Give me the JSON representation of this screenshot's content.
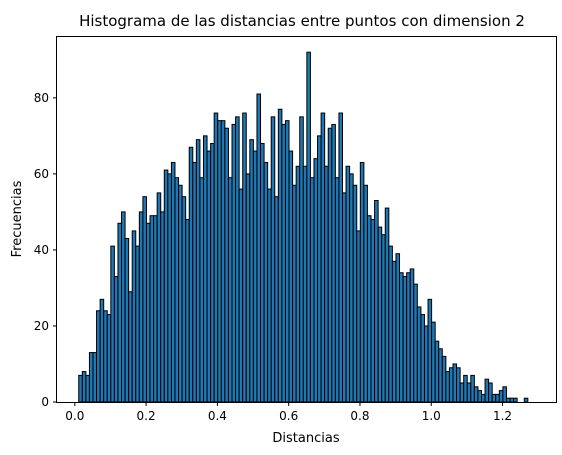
{
  "chart_data": {
    "type": "bar",
    "title": "Histograma de las distancias entre puntos con dimension 2",
    "xlabel": "Distancias",
    "ylabel": "Frecuencias",
    "xlim": [
      -0.05,
      1.35
    ],
    "ylim": [
      0,
      96
    ],
    "grid": false,
    "bar_color": "#1f77b4",
    "edge_color": "#000000",
    "x_ticks": [
      {
        "value": 0.0,
        "label": "0.0"
      },
      {
        "value": 0.2,
        "label": "0.2"
      },
      {
        "value": 0.4,
        "label": "0.4"
      },
      {
        "value": 0.6,
        "label": "0.6"
      },
      {
        "value": 0.8,
        "label": "0.8"
      },
      {
        "value": 1.0,
        "label": "1.0"
      },
      {
        "value": 1.2,
        "label": "1.2"
      }
    ],
    "y_ticks": [
      {
        "value": 0,
        "label": "0"
      },
      {
        "value": 20,
        "label": "20"
      },
      {
        "value": 40,
        "label": "40"
      },
      {
        "value": 60,
        "label": "60"
      },
      {
        "value": 80,
        "label": "80"
      }
    ],
    "bin_start": 0.011,
    "bin_width": 0.01,
    "values": [
      7,
      8,
      7,
      13,
      13,
      24,
      27,
      24,
      23,
      41,
      33,
      47,
      50,
      43,
      29,
      45,
      41,
      50,
      54,
      47,
      49,
      49,
      55,
      50,
      61,
      60,
      63,
      59,
      57,
      54,
      48,
      67,
      63,
      69,
      59,
      70,
      66,
      68,
      76,
      74,
      74,
      72,
      59,
      73,
      75,
      56,
      76,
      60,
      69,
      66,
      81,
      68,
      63,
      56,
      75,
      54,
      77,
      73,
      74,
      66,
      57,
      62,
      75,
      62,
      92,
      59,
      64,
      70,
      76,
      62,
      72,
      73,
      59,
      76,
      55,
      62,
      60,
      57,
      45,
      63,
      57,
      49,
      48,
      53,
      46,
      44,
      51,
      41,
      37,
      39,
      34,
      33,
      34,
      35,
      31,
      25,
      23,
      20,
      27,
      21,
      16,
      14,
      12,
      8,
      9,
      10,
      9,
      5,
      7,
      5,
      7,
      4,
      3,
      2,
      6,
      5,
      2,
      2,
      3,
      4,
      1,
      1,
      1,
      0,
      0,
      1
    ]
  }
}
